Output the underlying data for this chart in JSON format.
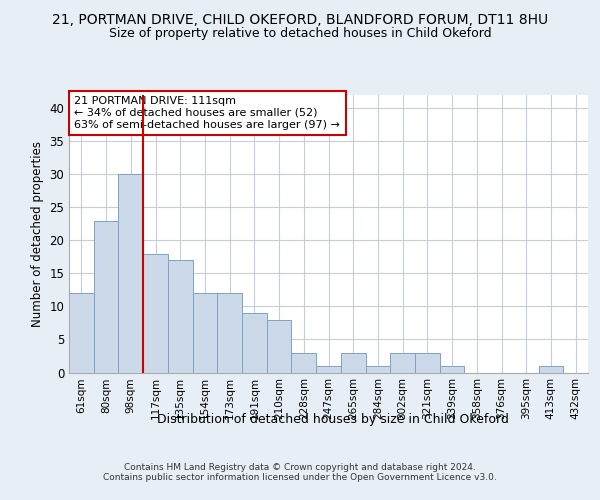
{
  "title": "21, PORTMAN DRIVE, CHILD OKEFORD, BLANDFORD FORUM, DT11 8HU",
  "subtitle": "Size of property relative to detached houses in Child Okeford",
  "xlabel": "Distribution of detached houses by size in Child Okeford",
  "ylabel": "Number of detached properties",
  "bar_labels": [
    "61sqm",
    "80sqm",
    "98sqm",
    "117sqm",
    "135sqm",
    "154sqm",
    "173sqm",
    "191sqm",
    "210sqm",
    "228sqm",
    "247sqm",
    "265sqm",
    "284sqm",
    "302sqm",
    "321sqm",
    "339sqm",
    "358sqm",
    "376sqm",
    "395sqm",
    "413sqm",
    "432sqm"
  ],
  "bar_values": [
    12,
    23,
    30,
    18,
    17,
    12,
    12,
    9,
    8,
    3,
    1,
    3,
    1,
    3,
    3,
    1,
    0,
    0,
    0,
    1,
    0
  ],
  "bar_color": "#ccd9e8",
  "bar_edge_color": "#7ba3c8",
  "vline_position": 2.5,
  "vline_color": "#cc0000",
  "annotation_text": "21 PORTMAN DRIVE: 111sqm\n← 34% of detached houses are smaller (52)\n63% of semi-detached houses are larger (97) →",
  "annotation_box_color": "#ffffff",
  "annotation_box_edge": "#cc0000",
  "ylim": [
    0,
    42
  ],
  "yticks": [
    0,
    5,
    10,
    15,
    20,
    25,
    30,
    35,
    40
  ],
  "footer": "Contains HM Land Registry data © Crown copyright and database right 2024.\nContains public sector information licensed under the Open Government Licence v3.0.",
  "bg_color": "#e8eef5",
  "plot_bg_color": "#ffffff",
  "grid_color": "#c5cdd8"
}
